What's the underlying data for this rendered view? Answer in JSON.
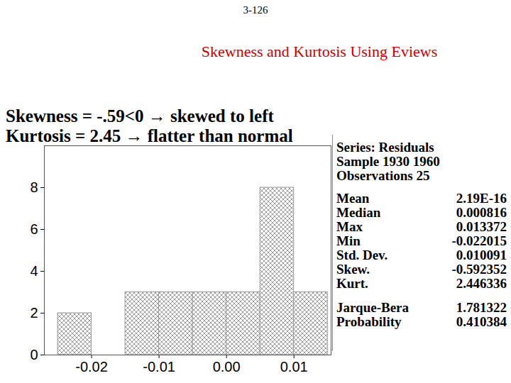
{
  "chart_data": {
    "type": "histogram",
    "header": "3-126",
    "title": "Skewness and Kurtosis Using Eviews",
    "annotations": [
      "Skewness = -.59<0 → skewed to left",
      "Kurtosis = 2.45 → flatter than normal"
    ],
    "bins": [
      -0.025,
      -0.02,
      -0.015,
      -0.01,
      -0.005,
      0,
      0.005,
      0.01,
      0.015
    ],
    "values": [
      2,
      0,
      3,
      3,
      3,
      3,
      8,
      3
    ],
    "color": "#9a9a9a",
    "xlim": [
      -0.027,
      0.0155
    ],
    "xticks": [
      -0.02,
      -0.01,
      {
        "value": 0,
        "label": "0.00"
      },
      0.01
    ],
    "ylim": [
      0,
      10
    ],
    "yticks": [
      0,
      2,
      4,
      6,
      8
    ],
    "stats": {
      "header": [
        "Series: Residuals",
        "Sample 1930 1960",
        "Observations 25"
      ],
      "rows": [
        {
          "label": "Mean",
          "value": "2.19E-16"
        },
        {
          "label": "Median",
          "value": "0.000816"
        },
        {
          "label": "Max",
          "value": "0.013372"
        },
        {
          "label": "Min",
          "value": "-0.022015"
        },
        {
          "label": "Std. Dev.",
          "value": "0.010091"
        },
        {
          "label": "Skew.",
          "value": "-0.592352"
        },
        {
          "label": "Kurt.",
          "value": "2.446336"
        },
        {
          "label": "Jarque-Bera",
          "value": "1.781322"
        },
        {
          "label": "Probability",
          "value": "0.410384"
        }
      ]
    }
  }
}
